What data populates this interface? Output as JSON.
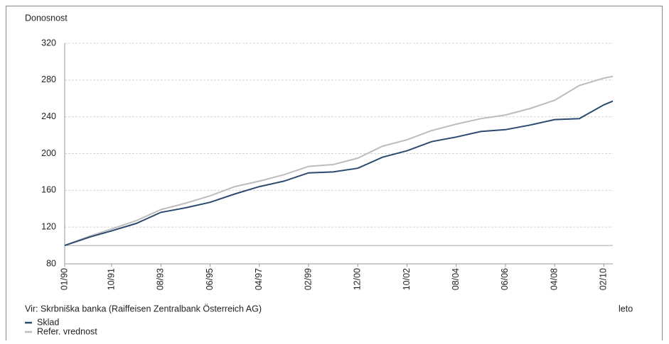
{
  "chart_data": {
    "type": "line",
    "ylabel": "Donosnost",
    "xlabel": "leto",
    "source": "Vir: Skrbniška banka (Raiffeisen Zentralbank Österreich AG)",
    "x": [
      "01/90",
      "12/90",
      "10/91",
      "09/92",
      "08/93",
      "07/94",
      "06/95",
      "05/96",
      "04/97",
      "03/98",
      "02/99",
      "01/00",
      "12/00",
      "11/01",
      "10/02",
      "09/03",
      "08/04",
      "07/05",
      "06/06",
      "05/07",
      "04/08",
      "03/09",
      "02/10",
      "06/10"
    ],
    "series": [
      {
        "name": "Sklad",
        "color": "#2b4a6f",
        "values": [
          100,
          109,
          116,
          124,
          136,
          141,
          147,
          156,
          164,
          170,
          179,
          180,
          184,
          196,
          203,
          213,
          218,
          224,
          226,
          231,
          237,
          238,
          253,
          257
        ]
      },
      {
        "name": "Refer. vrednost",
        "color": "#bcbcbc",
        "values": [
          100,
          110,
          118,
          127,
          139,
          146,
          154,
          164,
          170,
          177,
          186,
          188,
          195,
          208,
          215,
          225,
          232,
          238,
          242,
          249,
          258,
          274,
          282,
          284
        ]
      }
    ],
    "xticks": [
      "01/90",
      "10/91",
      "08/93",
      "06/95",
      "04/97",
      "02/99",
      "12/00",
      "10/02",
      "08/04",
      "06/06",
      "04/08",
      "02/10"
    ],
    "xlim": [
      "01/90",
      "06/10"
    ],
    "ylim": [
      80,
      320
    ],
    "yticks": [
      80,
      120,
      160,
      200,
      240,
      280,
      320
    ],
    "baseline": 100,
    "grid": true
  }
}
